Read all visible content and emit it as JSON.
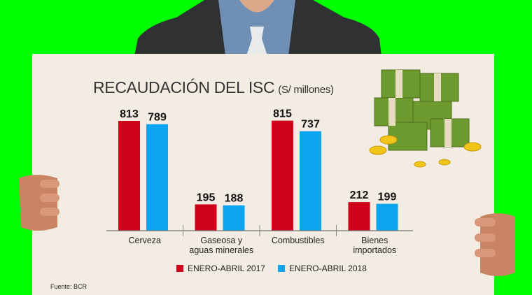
{
  "chart_data": {
    "type": "bar",
    "title": "RECAUDACIÓN DEL ISC",
    "subtitle": "(S/ millones)",
    "categories": [
      [
        "Cerveza"
      ],
      [
        "Gaseosa y",
        "aguas minerales"
      ],
      [
        "Combustibles"
      ],
      [
        "Bienes",
        "importados"
      ]
    ],
    "series": [
      {
        "name": "ENERO-ABRIL 2017",
        "color": "#d0021b",
        "values": [
          813,
          195,
          815,
          212
        ]
      },
      {
        "name": "ENERO-ABRIL 2018",
        "color": "#0aa4ef",
        "values": [
          789,
          188,
          737,
          199
        ]
      }
    ],
    "ylim": [
      0,
      850
    ],
    "grid": false,
    "legend": "bottom",
    "source": "Fuente: BCR"
  }
}
